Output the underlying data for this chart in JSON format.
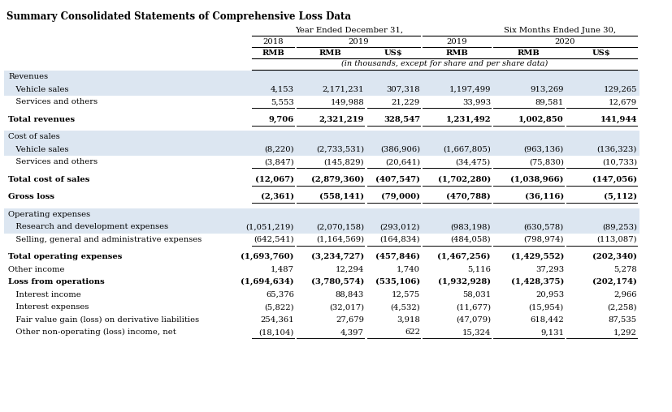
{
  "title": "Summary Consolidated Statements of Comprehensive Loss Data",
  "bg_color": "#ffffff",
  "shaded_color": "#dce6f1",
  "title_fontsize": 8.5,
  "table_fontsize": 7.2,
  "rows": [
    {
      "label": "Revenues",
      "indent": 0,
      "bold": false,
      "section_header": true,
      "values": [
        "",
        "",
        "",
        "",
        "",
        ""
      ],
      "shaded": true,
      "underline": false,
      "spacer": false
    },
    {
      "label": "   Vehicle sales",
      "indent": 0,
      "bold": false,
      "section_header": false,
      "values": [
        "4,153",
        "2,171,231",
        "307,318",
        "1,197,499",
        "913,269",
        "129,265"
      ],
      "shaded": true,
      "underline": false,
      "spacer": false
    },
    {
      "label": "   Services and others",
      "indent": 0,
      "bold": false,
      "section_header": false,
      "values": [
        "5,553",
        "149,988",
        "21,229",
        "33,993",
        "89,581",
        "12,679"
      ],
      "shaded": false,
      "underline": true,
      "spacer": false
    },
    {
      "label": "",
      "indent": 0,
      "bold": false,
      "section_header": false,
      "values": [
        "",
        "",
        "",
        "",
        "",
        ""
      ],
      "shaded": false,
      "underline": false,
      "spacer": true
    },
    {
      "label": "Total revenues",
      "indent": 0,
      "bold": true,
      "section_header": false,
      "values": [
        "9,706",
        "2,321,219",
        "328,547",
        "1,231,492",
        "1,002,850",
        "141,944"
      ],
      "shaded": false,
      "underline": true,
      "spacer": false
    },
    {
      "label": "",
      "indent": 0,
      "bold": false,
      "section_header": false,
      "values": [
        "",
        "",
        "",
        "",
        "",
        ""
      ],
      "shaded": false,
      "underline": false,
      "spacer": true
    },
    {
      "label": "Cost of sales",
      "indent": 0,
      "bold": false,
      "section_header": true,
      "values": [
        "",
        "",
        "",
        "",
        "",
        ""
      ],
      "shaded": true,
      "underline": false,
      "spacer": false
    },
    {
      "label": "   Vehicle sales",
      "indent": 0,
      "bold": false,
      "section_header": false,
      "values": [
        "(8,220)",
        "(2,733,531)",
        "(386,906)",
        "(1,667,805)",
        "(963,136)",
        "(136,323)"
      ],
      "shaded": true,
      "underline": false,
      "spacer": false
    },
    {
      "label": "   Services and others",
      "indent": 0,
      "bold": false,
      "section_header": false,
      "values": [
        "(3,847)",
        "(145,829)",
        "(20,641)",
        "(34,475)",
        "(75,830)",
        "(10,733)"
      ],
      "shaded": false,
      "underline": true,
      "spacer": false
    },
    {
      "label": "",
      "indent": 0,
      "bold": false,
      "section_header": false,
      "values": [
        "",
        "",
        "",
        "",
        "",
        ""
      ],
      "shaded": false,
      "underline": false,
      "spacer": true
    },
    {
      "label": "Total cost of sales",
      "indent": 0,
      "bold": true,
      "section_header": false,
      "values": [
        "(12,067)",
        "(2,879,360)",
        "(407,547)",
        "(1,702,280)",
        "(1,038,966)",
        "(147,056)"
      ],
      "shaded": false,
      "underline": true,
      "spacer": false
    },
    {
      "label": "",
      "indent": 0,
      "bold": false,
      "section_header": false,
      "values": [
        "",
        "",
        "",
        "",
        "",
        ""
      ],
      "shaded": false,
      "underline": false,
      "spacer": true
    },
    {
      "label": "Gross loss",
      "indent": 0,
      "bold": true,
      "section_header": false,
      "values": [
        "(2,361)",
        "(558,141)",
        "(79,000)",
        "(470,788)",
        "(36,116)",
        "(5,112)"
      ],
      "shaded": false,
      "underline": true,
      "spacer": false
    },
    {
      "label": "",
      "indent": 0,
      "bold": false,
      "section_header": false,
      "values": [
        "",
        "",
        "",
        "",
        "",
        ""
      ],
      "shaded": false,
      "underline": false,
      "spacer": true
    },
    {
      "label": "Operating expenses",
      "indent": 0,
      "bold": false,
      "section_header": true,
      "values": [
        "",
        "",
        "",
        "",
        "",
        ""
      ],
      "shaded": true,
      "underline": false,
      "spacer": false
    },
    {
      "label": "   Research and development expenses",
      "indent": 0,
      "bold": false,
      "section_header": false,
      "values": [
        "(1,051,219)",
        "(2,070,158)",
        "(293,012)",
        "(983,198)",
        "(630,578)",
        "(89,253)"
      ],
      "shaded": true,
      "underline": false,
      "spacer": false
    },
    {
      "label": "   Selling, general and administrative expenses",
      "indent": 0,
      "bold": false,
      "section_header": false,
      "values": [
        "(642,541)",
        "(1,164,569)",
        "(164,834)",
        "(484,058)",
        "(798,974)",
        "(113,087)"
      ],
      "shaded": false,
      "underline": true,
      "spacer": false
    },
    {
      "label": "",
      "indent": 0,
      "bold": false,
      "section_header": false,
      "values": [
        "",
        "",
        "",
        "",
        "",
        ""
      ],
      "shaded": false,
      "underline": false,
      "spacer": true
    },
    {
      "label": "Total operating expenses",
      "indent": 0,
      "bold": true,
      "section_header": false,
      "values": [
        "(1,693,760)",
        "(3,234,727)",
        "(457,846)",
        "(1,467,256)",
        "(1,429,552)",
        "(202,340)"
      ],
      "shaded": false,
      "underline": false,
      "spacer": false
    },
    {
      "label": "Other income",
      "indent": 0,
      "bold": false,
      "section_header": false,
      "values": [
        "1,487",
        "12,294",
        "1,740",
        "5,116",
        "37,293",
        "5,278"
      ],
      "shaded": false,
      "underline": false,
      "spacer": false
    },
    {
      "label": "Loss from operations",
      "indent": 0,
      "bold": true,
      "section_header": false,
      "values": [
        "(1,694,634)",
        "(3,780,574)",
        "(535,106)",
        "(1,932,928)",
        "(1,428,375)",
        "(202,174)"
      ],
      "shaded": false,
      "underline": false,
      "spacer": false
    },
    {
      "label": "   Interest income",
      "indent": 0,
      "bold": false,
      "section_header": false,
      "values": [
        "65,376",
        "88,843",
        "12,575",
        "58,031",
        "20,953",
        "2,966"
      ],
      "shaded": false,
      "underline": false,
      "spacer": false
    },
    {
      "label": "   Interest expenses",
      "indent": 0,
      "bold": false,
      "section_header": false,
      "values": [
        "(5,822)",
        "(32,017)",
        "(4,532)",
        "(11,677)",
        "(15,954)",
        "(2,258)"
      ],
      "shaded": false,
      "underline": false,
      "spacer": false
    },
    {
      "label": "   Fair value gain (loss) on derivative liabilities",
      "indent": 0,
      "bold": false,
      "section_header": false,
      "values": [
        "254,361",
        "27,679",
        "3,918",
        "(47,079)",
        "618,442",
        "87,535"
      ],
      "shaded": false,
      "underline": false,
      "spacer": false
    },
    {
      "label": "   Other non-operating (loss) income, net",
      "indent": 0,
      "bold": false,
      "section_header": false,
      "values": [
        "(18,104)",
        "4,397",
        "622",
        "15,324",
        "9,131",
        "1,292"
      ],
      "shaded": false,
      "underline": true,
      "spacer": false
    }
  ]
}
